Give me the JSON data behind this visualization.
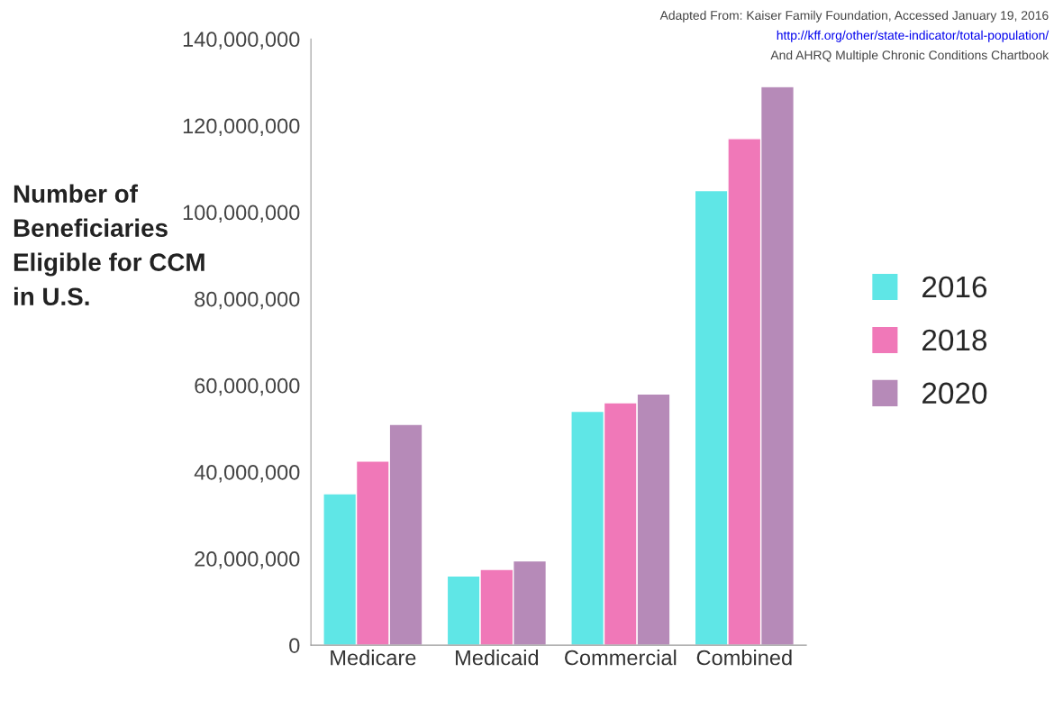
{
  "chart_data": {
    "type": "bar",
    "ylabel": "Number of Beneficiaries Eligible for CCM in U.S.",
    "categories": [
      "Medicare",
      "Medicaid",
      "Commercial",
      "Combined"
    ],
    "series": [
      {
        "name": "2016",
        "color": "#5fe6e6",
        "values": [
          35000000,
          16000000,
          54000000,
          105000000
        ]
      },
      {
        "name": "2018",
        "color": "#f078b8",
        "values": [
          42500000,
          17500000,
          56000000,
          117000000
        ]
      },
      {
        "name": "2020",
        "color": "#b68ab8",
        "values": [
          51000000,
          19500000,
          58000000,
          129000000
        ]
      }
    ],
    "ylim": [
      0,
      140000000
    ],
    "yticks": [
      {
        "value": 0,
        "label": "0"
      },
      {
        "value": 20000000,
        "label": "20,000,000"
      },
      {
        "value": 40000000,
        "label": "40,000,000"
      },
      {
        "value": 60000000,
        "label": "60,000,000"
      },
      {
        "value": 80000000,
        "label": "80,000,000"
      },
      {
        "value": 100000000,
        "label": "100,000,000"
      },
      {
        "value": 120000000,
        "label": "120,000,000"
      },
      {
        "value": 140000000,
        "label": "140,000,000"
      }
    ],
    "legend": "right",
    "grid": false,
    "annotations": [
      "Adapted From: Kaiser Family Foundation, Accessed January 19, 2016",
      "http://kff.org/other/state-indicator/total-population/",
      "And AHRQ Multiple Chronic Conditions Chartbook"
    ]
  }
}
